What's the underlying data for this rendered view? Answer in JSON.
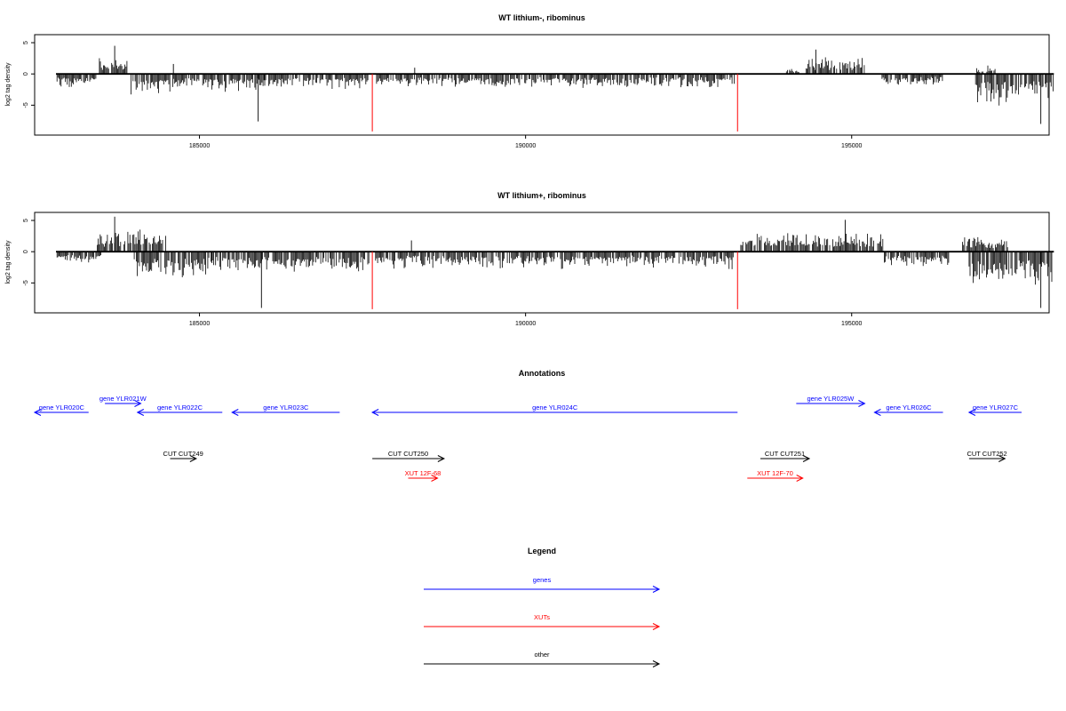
{
  "colors": {
    "genes": "#0000ff",
    "xuts": "#ff0000",
    "other": "#000000",
    "marker": "#ff0000"
  },
  "chart_data": [
    {
      "type": "bar",
      "title": "WT lithium-, ribominus",
      "ylabel": "log2 tag density",
      "xlim": [
        182500,
        198000
      ],
      "ylim": [
        -9.5,
        6
      ],
      "yticks": [
        -5,
        0,
        5
      ],
      "yticklabels": [
        "-5",
        "0",
        "5"
      ],
      "xticks": [
        185000,
        190000,
        195000
      ],
      "xticklabels": [
        "185000",
        "190000",
        "195000"
      ],
      "baseline": 0,
      "marker_positions": [
        187650,
        193250
      ],
      "marker_value": -9.2,
      "segments": [
        {
          "start": 182800,
          "end": 183450,
          "sign": -1,
          "amp": 2.4
        },
        {
          "start": 183450,
          "end": 183900,
          "sign": 1,
          "amp": 2.7
        },
        {
          "start": 183950,
          "end": 184600,
          "sign": -1,
          "amp": 3.6
        },
        {
          "start": 184600,
          "end": 185000,
          "sign": -1,
          "amp": 2.8
        },
        {
          "start": 185050,
          "end": 186000,
          "sign": -1,
          "amp": 3.0
        },
        {
          "start": 186000,
          "end": 187600,
          "sign": -1,
          "amp": 2.6
        },
        {
          "start": 187700,
          "end": 193200,
          "sign": -1,
          "amp": 2.4
        },
        {
          "start": 194000,
          "end": 194200,
          "sign": 1,
          "amp": 1.0
        },
        {
          "start": 194300,
          "end": 195200,
          "sign": 1,
          "amp": 2.8
        },
        {
          "start": 195450,
          "end": 196000,
          "sign": -1,
          "amp": 2.2
        },
        {
          "start": 196000,
          "end": 196400,
          "sign": -1,
          "amp": 2.0
        },
        {
          "start": 196900,
          "end": 197200,
          "sign": 1,
          "amp": 1.4
        },
        {
          "start": 196900,
          "end": 198100,
          "sign": -1,
          "amp": 5.2
        }
      ],
      "peaks": [
        {
          "x": 183700,
          "y": 4.5
        },
        {
          "x": 184600,
          "y": 1.6
        },
        {
          "x": 185900,
          "y": -7.6
        },
        {
          "x": 188300,
          "y": 1.0
        },
        {
          "x": 194450,
          "y": 3.9
        },
        {
          "x": 197900,
          "y": -8.0
        }
      ]
    },
    {
      "type": "bar",
      "title": "WT lithium+, ribominus",
      "ylabel": "log2 tag density",
      "xlim": [
        182500,
        198000
      ],
      "ylim": [
        -9.5,
        6
      ],
      "yticks": [
        -5,
        0,
        5
      ],
      "yticklabels": [
        "-5",
        "0",
        "5"
      ],
      "xticks": [
        185000,
        190000,
        195000
      ],
      "xticklabels": [
        "185000",
        "190000",
        "195000"
      ],
      "baseline": 0,
      "marker_positions": [
        187650,
        193250
      ],
      "marker_value": -9.2,
      "segments": [
        {
          "start": 182800,
          "end": 183500,
          "sign": -1,
          "amp": 2.2
        },
        {
          "start": 183400,
          "end": 184500,
          "sign": 1,
          "amp": 3.8
        },
        {
          "start": 184000,
          "end": 185200,
          "sign": -1,
          "amp": 4.6
        },
        {
          "start": 185200,
          "end": 187600,
          "sign": -1,
          "amp": 3.6
        },
        {
          "start": 187700,
          "end": 193200,
          "sign": -1,
          "amp": 3.0
        },
        {
          "start": 193300,
          "end": 195500,
          "sign": 1,
          "amp": 3.4
        },
        {
          "start": 195500,
          "end": 196500,
          "sign": -1,
          "amp": 2.8
        },
        {
          "start": 196700,
          "end": 197400,
          "sign": 1,
          "amp": 2.6
        },
        {
          "start": 196800,
          "end": 198100,
          "sign": -1,
          "amp": 6.2
        }
      ],
      "peaks": [
        {
          "x": 183700,
          "y": 5.6
        },
        {
          "x": 185950,
          "y": -9.0
        },
        {
          "x": 188250,
          "y": 1.8
        },
        {
          "x": 194900,
          "y": 5.1
        },
        {
          "x": 197900,
          "y": -9.0
        }
      ]
    }
  ],
  "annotations": {
    "title": "Annotations",
    "features": [
      {
        "label": "gene YLR020C",
        "start": 182300,
        "end": 183300,
        "strand": "-",
        "type": "gene",
        "row": 1
      },
      {
        "label": "gene YLR021W",
        "start": 183550,
        "end": 184100,
        "strand": "+",
        "type": "gene",
        "row": 0
      },
      {
        "label": "gene YLR022C",
        "start": 184050,
        "end": 185350,
        "strand": "-",
        "type": "gene",
        "row": 1
      },
      {
        "label": "gene YLR023C",
        "start": 185500,
        "end": 187150,
        "strand": "-",
        "type": "gene",
        "row": 1
      },
      {
        "label": "gene YLR024C",
        "start": 187650,
        "end": 193250,
        "strand": "-",
        "type": "gene",
        "row": 1
      },
      {
        "label": "gene YLR025W",
        "start": 194150,
        "end": 195200,
        "strand": "+",
        "type": "gene",
        "row": 0
      },
      {
        "label": "gene YLR026C",
        "start": 195350,
        "end": 196400,
        "strand": "-",
        "type": "gene",
        "row": 1
      },
      {
        "label": "gene YLR027C",
        "start": 196800,
        "end": 198100,
        "strand": "-",
        "type": "gene",
        "row": 1
      },
      {
        "label": "CUT CUT249",
        "start": 184550,
        "end": 184950,
        "strand": "+",
        "type": "other",
        "row": 2
      },
      {
        "label": "CUT CUT250",
        "start": 187650,
        "end": 188750,
        "strand": "+",
        "type": "other",
        "row": 2
      },
      {
        "label": "CUT CUT251",
        "start": 193600,
        "end": 194350,
        "strand": "+",
        "type": "other",
        "row": 2
      },
      {
        "label": "CUT CUT252",
        "start": 196800,
        "end": 197350,
        "strand": "+",
        "type": "other",
        "row": 2
      },
      {
        "label": "XUT 12F-68",
        "start": 188200,
        "end": 188650,
        "strand": "+",
        "type": "xut",
        "row": 3
      },
      {
        "label": "XUT 12F-70",
        "start": 193400,
        "end": 194250,
        "strand": "+",
        "type": "xut",
        "row": 3
      }
    ]
  },
  "legend": {
    "title": "Legend",
    "items": [
      {
        "label": "genes",
        "type": "gene"
      },
      {
        "label": "XUTs",
        "type": "xut"
      },
      {
        "label": "other",
        "type": "other"
      }
    ]
  }
}
